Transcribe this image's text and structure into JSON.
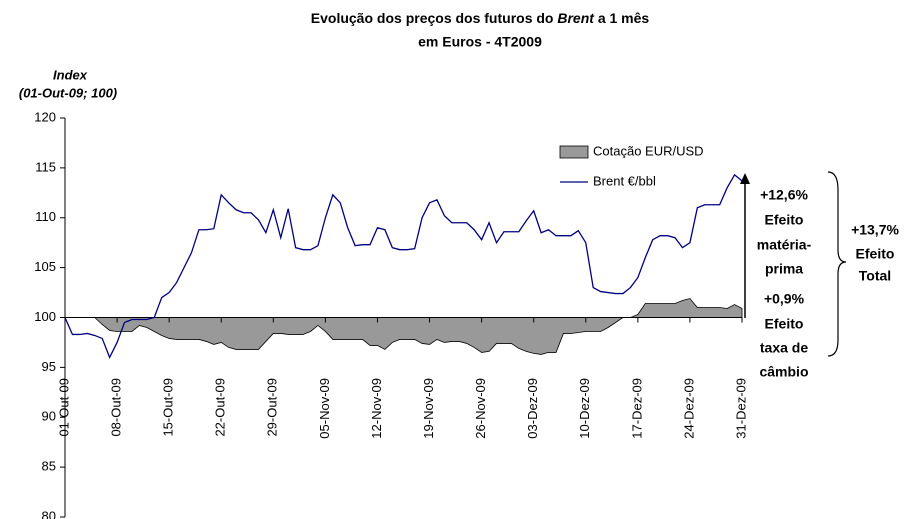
{
  "chart_data": {
    "type": "line-area",
    "title_parts": [
      "Evolução dos preços dos futuros do",
      "Brent",
      "a 1 mês"
    ],
    "subtitle": "em Euros - 4T2009",
    "y_label": [
      "Index",
      "(01-Out-09; 100)"
    ],
    "annotations": {
      "raw": [
        "+12,6%",
        "Efeito",
        "matéria-",
        "prima"
      ],
      "fx": [
        "+0,9%",
        "Efeito",
        "taxa de",
        "câmbio"
      ],
      "total": [
        "+13,7%",
        "Efeito",
        "Total"
      ]
    },
    "ylim": [
      80,
      120
    ],
    "yticks": [
      80,
      85,
      90,
      95,
      100,
      105,
      110,
      115,
      120
    ],
    "baseline": 100,
    "categories": [
      "01-Out-09",
      null,
      null,
      null,
      null,
      null,
      null,
      "08-Out-09",
      null,
      null,
      null,
      null,
      null,
      null,
      "15-Out-09",
      null,
      null,
      null,
      null,
      null,
      null,
      "22-Out-09",
      null,
      null,
      null,
      null,
      null,
      null,
      "29-Out-09",
      null,
      null,
      null,
      null,
      null,
      null,
      "05-Nov-09",
      null,
      null,
      null,
      null,
      null,
      null,
      "12-Nov-09",
      null,
      null,
      null,
      null,
      null,
      null,
      "19-Nov-09",
      null,
      null,
      null,
      null,
      null,
      null,
      "26-Nov-09",
      null,
      null,
      null,
      null,
      null,
      null,
      "03-Dez-09",
      null,
      null,
      null,
      null,
      null,
      null,
      "10-Dez-09",
      null,
      null,
      null,
      null,
      null,
      null,
      "17-Dez-09",
      null,
      null,
      null,
      null,
      null,
      null,
      "24-Dez-09",
      null,
      null,
      null,
      null,
      null,
      null,
      "31-Dez-09"
    ],
    "series": [
      {
        "name": "Cotação EUR/USD",
        "kind": "area",
        "color": "#999999",
        "values": [
          100,
          100,
          100,
          100,
          100,
          99.3,
          98.7,
          98.6,
          98.6,
          98.6,
          99.2,
          99,
          98.6,
          98.2,
          97.9,
          97.8,
          97.8,
          97.8,
          97.8,
          97.6,
          97.3,
          97.5,
          97,
          96.8,
          96.8,
          96.8,
          96.8,
          97.6,
          98.4,
          98.4,
          98.3,
          98.3,
          98.3,
          98.6,
          99.2,
          98.6,
          97.8,
          97.8,
          97.8,
          97.8,
          97.8,
          97.2,
          97.2,
          96.8,
          97.5,
          97.8,
          97.8,
          97.8,
          97.4,
          97.3,
          97.8,
          97.5,
          97.6,
          97.6,
          97.4,
          97,
          96.5,
          96.6,
          97.4,
          97.4,
          97.4,
          96.9,
          96.6,
          96.4,
          96.3,
          96.5,
          96.5,
          98.4,
          98.4,
          98.5,
          98.6,
          98.6,
          98.6,
          99,
          99.5,
          100,
          100,
          100.3,
          101.4,
          101.4,
          101.4,
          101.4,
          101.4,
          101.7,
          101.9,
          101,
          101,
          101,
          101,
          100.9,
          101.3,
          100.9
        ]
      },
      {
        "name": "Brent €/bbl",
        "kind": "line",
        "color": "#000080",
        "values": [
          100,
          98.3,
          98.3,
          98.4,
          98.2,
          97.9,
          96,
          97.5,
          99.5,
          99.8,
          99.8,
          99.8,
          100,
          102,
          102.5,
          103.5,
          105,
          106.5,
          108.8,
          108.8,
          108.9,
          112.3,
          111.5,
          110.8,
          110.5,
          110.5,
          109.8,
          108.5,
          110.8,
          108,
          110.9,
          107,
          106.8,
          106.8,
          107.2,
          110,
          112.3,
          111.5,
          109,
          107.2,
          107.3,
          107.3,
          109,
          108.8,
          107,
          106.8,
          106.8,
          106.9,
          110,
          111.5,
          111.8,
          110.2,
          109.5,
          109.5,
          109.5,
          108.8,
          107.8,
          109.5,
          107.5,
          108.6,
          108.6,
          108.6,
          109.7,
          110.7,
          108.5,
          108.8,
          108.2,
          108.2,
          108.2,
          108.7,
          107.5,
          103,
          102.6,
          102.5,
          102.4,
          102.4,
          103,
          104,
          106,
          107.8,
          108.2,
          108.2,
          108,
          107,
          107.5,
          111,
          111.3,
          111.3,
          111.3,
          113,
          114.3,
          113.7
        ]
      }
    ]
  }
}
